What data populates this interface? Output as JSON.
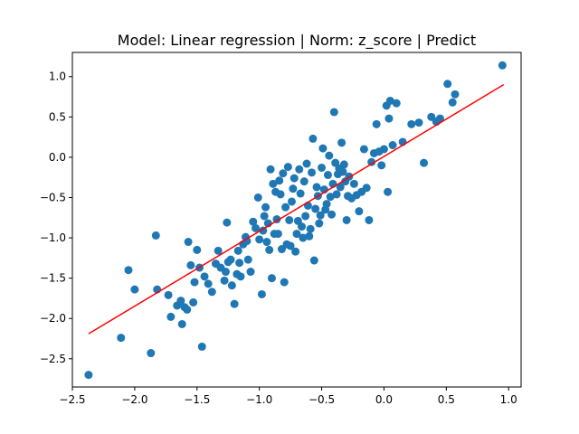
{
  "chart_data": {
    "type": "scatter",
    "title": "Model: Linear regression | Norm: z_score | Predict",
    "xlabel": "",
    "ylabel": "",
    "xlim": [
      -2.5,
      1.1
    ],
    "ylim": [
      -2.85,
      1.3
    ],
    "xticks": [
      "−2.5",
      "−2.0",
      "−1.5",
      "−1.0",
      "−0.5",
      "0.0",
      "0.5",
      "1.0"
    ],
    "xtick_values": [
      -2.5,
      -2.0,
      -1.5,
      -1.0,
      -0.5,
      0.0,
      0.5,
      1.0
    ],
    "yticks": [
      "1.0",
      "0.5",
      "0.0",
      "−0.5",
      "−1.0",
      "−1.5",
      "−2.0",
      "−2.5"
    ],
    "ytick_values": [
      1.0,
      0.5,
      0.0,
      -0.5,
      -1.0,
      -1.5,
      -2.0,
      -2.5
    ],
    "grid": false,
    "colors": {
      "points": "#1f77b4",
      "line": "#ff0000"
    },
    "series": [
      {
        "kind": "scatter",
        "points": [
          [
            -2.37,
            -2.7
          ],
          [
            -2.11,
            -2.24
          ],
          [
            -2.05,
            -1.4
          ],
          [
            -2.0,
            -1.64
          ],
          [
            -1.87,
            -2.43
          ],
          [
            -1.83,
            -0.97
          ],
          [
            -1.82,
            -1.64
          ],
          [
            -1.73,
            -1.71
          ],
          [
            -1.71,
            -1.98
          ],
          [
            -1.66,
            -1.84
          ],
          [
            -1.63,
            -1.78
          ],
          [
            -1.62,
            -2.07
          ],
          [
            -1.6,
            -1.86
          ],
          [
            -1.58,
            -1.89
          ],
          [
            -1.57,
            -1.05
          ],
          [
            -1.55,
            -1.34
          ],
          [
            -1.53,
            -1.8
          ],
          [
            -1.52,
            -1.55
          ],
          [
            -1.5,
            -1.15
          ],
          [
            -1.48,
            -1.37
          ],
          [
            -1.46,
            -2.35
          ],
          [
            -1.44,
            -1.48
          ],
          [
            -1.41,
            -1.57
          ],
          [
            -1.38,
            -1.67
          ],
          [
            -1.35,
            -1.32
          ],
          [
            -1.33,
            -1.16
          ],
          [
            -1.31,
            -1.37
          ],
          [
            -1.28,
            -1.53
          ],
          [
            -1.27,
            -1.42
          ],
          [
            -1.26,
            -0.81
          ],
          [
            -1.25,
            -1.3
          ],
          [
            -1.23,
            -1.27
          ],
          [
            -1.22,
            -1.59
          ],
          [
            -1.2,
            -1.82
          ],
          [
            -1.18,
            -1.45
          ],
          [
            -1.17,
            -1.16
          ],
          [
            -1.16,
            -1.31
          ],
          [
            -1.15,
            -1.48
          ],
          [
            -1.13,
            -1.08
          ],
          [
            -1.11,
            -0.99
          ],
          [
            -1.1,
            -1.04
          ],
          [
            -1.09,
            -1.27
          ],
          [
            -1.07,
            -1.42
          ],
          [
            -1.05,
            -0.8
          ],
          [
            -1.03,
            -0.88
          ],
          [
            -1.01,
            -0.5
          ],
          [
            -1.0,
            -1.02
          ],
          [
            -0.98,
            -1.7
          ],
          [
            -0.97,
            -0.91
          ],
          [
            -0.96,
            -0.73
          ],
          [
            -0.95,
            -0.62
          ],
          [
            -0.94,
            -1.05
          ],
          [
            -0.93,
            -0.82
          ],
          [
            -0.92,
            -1.15
          ],
          [
            -0.91,
            -0.15
          ],
          [
            -0.9,
            -1.5
          ],
          [
            -0.89,
            -0.33
          ],
          [
            -0.88,
            -0.95
          ],
          [
            -0.87,
            -0.43
          ],
          [
            -0.86,
            -0.77
          ],
          [
            -0.85,
            -0.95
          ],
          [
            -0.84,
            -0.29
          ],
          [
            -0.83,
            -0.46
          ],
          [
            -0.82,
            -1.14
          ],
          [
            -0.81,
            -0.2
          ],
          [
            -0.8,
            -1.55
          ],
          [
            -0.79,
            -0.62
          ],
          [
            -0.78,
            -1.08
          ],
          [
            -0.77,
            -0.12
          ],
          [
            -0.76,
            -0.78
          ],
          [
            -0.75,
            -1.1
          ],
          [
            -0.74,
            -0.55
          ],
          [
            -0.73,
            -0.39
          ],
          [
            -0.72,
            -0.26
          ],
          [
            -0.71,
            -1.17
          ],
          [
            -0.7,
            -0.95
          ],
          [
            -0.69,
            -0.79
          ],
          [
            -0.68,
            -0.15
          ],
          [
            -0.67,
            -0.45
          ],
          [
            -0.66,
            -0.86
          ],
          [
            -0.65,
            -1.0
          ],
          [
            -0.64,
            -0.3
          ],
          [
            -0.63,
            -0.73
          ],
          [
            -0.62,
            -0.08
          ],
          [
            -0.61,
            -0.6
          ],
          [
            -0.6,
            -0.98
          ],
          [
            -0.59,
            -0.89
          ],
          [
            -0.58,
            -0.19
          ],
          [
            -0.57,
            0.23
          ],
          [
            -0.56,
            -1.28
          ],
          [
            -0.55,
            -0.64
          ],
          [
            -0.54,
            -0.37
          ],
          [
            -0.53,
            -0.48
          ],
          [
            -0.52,
            -0.82
          ],
          [
            -0.51,
            -0.72
          ],
          [
            -0.5,
            -0.13
          ],
          [
            -0.49,
            0.11
          ],
          [
            -0.48,
            -0.4
          ],
          [
            -0.47,
            -0.65
          ],
          [
            -0.46,
            -0.58
          ],
          [
            -0.45,
            -0.22
          ],
          [
            -0.44,
            0.02
          ],
          [
            -0.43,
            -0.49
          ],
          [
            -0.42,
            -0.71
          ],
          [
            -0.41,
            -0.33
          ],
          [
            -0.4,
            0.56
          ],
          [
            -0.39,
            -0.07
          ],
          [
            -0.38,
            -0.46
          ],
          [
            -0.37,
            -0.21
          ],
          [
            -0.36,
            -0.14
          ],
          [
            -0.35,
            -0.37
          ],
          [
            -0.34,
            0.18
          ],
          [
            -0.33,
            -0.18
          ],
          [
            -0.32,
            -0.09
          ],
          [
            -0.31,
            -0.3
          ],
          [
            -0.3,
            -0.78
          ],
          [
            -0.29,
            -0.48
          ],
          [
            -0.28,
            -0.24
          ],
          [
            -0.26,
            -0.51
          ],
          [
            -0.24,
            -0.33
          ],
          [
            -0.22,
            -0.47
          ],
          [
            -0.2,
            -0.67
          ],
          [
            -0.18,
            -0.43
          ],
          [
            -0.16,
            0.1
          ],
          [
            -0.14,
            -0.38
          ],
          [
            -0.12,
            -0.78
          ],
          [
            -0.1,
            -0.06
          ],
          [
            -0.08,
            0.05
          ],
          [
            -0.06,
            0.41
          ],
          [
            -0.04,
            0.07
          ],
          [
            -0.02,
            -0.1
          ],
          [
            0.0,
            0.1
          ],
          [
            0.02,
            0.64
          ],
          [
            0.03,
            -0.43
          ],
          [
            0.04,
            0.48
          ],
          [
            0.05,
            0.7
          ],
          [
            0.07,
            0.15
          ],
          [
            0.1,
            0.67
          ],
          [
            0.15,
            0.19
          ],
          [
            0.22,
            0.41
          ],
          [
            0.28,
            0.43
          ],
          [
            0.32,
            -0.07
          ],
          [
            0.38,
            0.5
          ],
          [
            0.42,
            0.44
          ],
          [
            0.45,
            0.48
          ],
          [
            0.51,
            0.91
          ],
          [
            0.55,
            0.68
          ],
          [
            0.57,
            0.78
          ],
          [
            0.95,
            1.14
          ]
        ]
      },
      {
        "kind": "line",
        "points": [
          [
            -2.37,
            -2.19
          ],
          [
            0.96,
            0.9
          ]
        ]
      }
    ]
  }
}
